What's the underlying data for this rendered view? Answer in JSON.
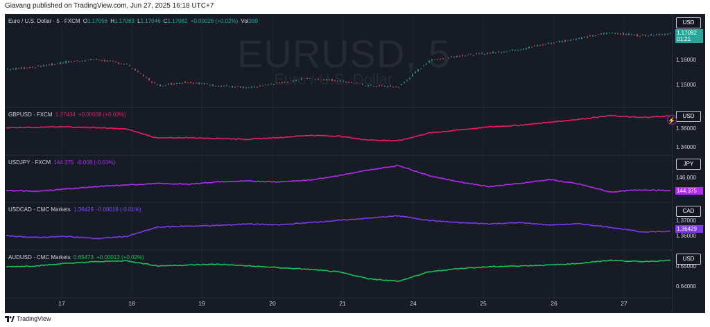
{
  "header": {
    "text": "Giavang published on TradingView.com, Jun 27, 2025 16:18 UTC+7"
  },
  "footer": {
    "brand": "TradingView"
  },
  "watermark": {
    "symbol": "EURUSD, 5",
    "name": "Euro / U.S. Dollar"
  },
  "colors": {
    "bg": "#171b26",
    "grid": "#2a2e39",
    "up": "#26a69a",
    "down": "#ef5350",
    "gbp": "#e91e63",
    "jpy": "#b22bf0",
    "cad": "#7c3aed",
    "aud": "#16c456"
  },
  "chart_data": [
    {
      "type": "candlestick",
      "legend": {
        "title": "Euro / U.S. Dollar · 5 · FXCM",
        "o_label": "O",
        "o": "1.17056",
        "h_label": "H",
        "h": "1.17083",
        "l_label": "L",
        "l": "1.17046",
        "c_label": "C",
        "c": "1.17082",
        "change": "+0.00026 (+0.02%)",
        "vol_label": "Vol",
        "vol": "399"
      },
      "currency": "USD",
      "last_price": "1.17082",
      "countdown": "01:21",
      "y_ticks": [
        "1.16000",
        "1.15000"
      ],
      "ylim": [
        1.1435,
        1.1765
      ],
      "x": [
        "start",
        "",
        "17",
        "",
        "18",
        "",
        "19",
        "",
        "20",
        "",
        "21",
        "",
        "gap",
        "",
        "24",
        "",
        "25",
        "",
        "26",
        "",
        "27",
        "",
        "end"
      ],
      "values": [
        1.1565,
        1.1575,
        1.1595,
        1.1605,
        1.1585,
        1.15,
        1.1515,
        1.15,
        1.149,
        1.151,
        1.153,
        1.152,
        1.15,
        1.1495,
        1.16,
        1.162,
        1.163,
        1.1645,
        1.167,
        1.169,
        1.1712,
        1.17,
        1.1708
      ]
    },
    {
      "type": "line",
      "legend": {
        "title": "GBPUSD · FXCM",
        "value": "1.37434",
        "change": "+0.00038 (+0.03%)"
      },
      "currency": "USD",
      "y_ticks": [
        "1.36000",
        "1.34000"
      ],
      "ylim": [
        1.3305,
        1.378
      ],
      "values": [
        1.359,
        1.3595,
        1.36,
        1.359,
        1.357,
        1.3455,
        1.346,
        1.345,
        1.344,
        1.346,
        1.349,
        1.348,
        1.343,
        1.342,
        1.352,
        1.356,
        1.36,
        1.362,
        1.366,
        1.37,
        1.3745,
        1.372,
        1.3743
      ]
    },
    {
      "type": "line",
      "legend": {
        "title": "USDJPY · FXCM",
        "value": "144.375",
        "change": "-0.008 (-0.01%)"
      },
      "currency": "JPY",
      "last_price": "144.375",
      "y_ticks": [
        "146.000"
      ],
      "ylim": [
        143.6,
        148.2
      ],
      "values": [
        144.4,
        144.3,
        144.6,
        144.9,
        145.1,
        145.3,
        145.2,
        145.5,
        145.6,
        145.5,
        145.7,
        146.3,
        147.0,
        147.6,
        146.3,
        145.5,
        144.9,
        145.3,
        145.8,
        145.2,
        144.2,
        144.5,
        144.375
      ]
    },
    {
      "type": "line",
      "legend": {
        "title": "USDCAD · CMC Markets",
        "value": "1.36429",
        "change": "-0.00019 (-0.01%)"
      },
      "currency": "CAD",
      "last_price": "1.36429",
      "y_ticks": [
        "1.37000",
        "1.36000"
      ],
      "ylim": [
        1.3528,
        1.385
      ],
      "values": [
        1.3605,
        1.359,
        1.36,
        1.358,
        1.36,
        1.368,
        1.369,
        1.3695,
        1.371,
        1.37,
        1.372,
        1.374,
        1.376,
        1.378,
        1.374,
        1.372,
        1.371,
        1.372,
        1.37,
        1.371,
        1.368,
        1.364,
        1.3643
      ]
    },
    {
      "type": "line",
      "legend": {
        "title": "AUDUSD · CMC Markets",
        "value": "0.65473",
        "change": "+0.00013 (+0.02%)"
      },
      "currency": "USD",
      "y_ticks": [
        "0.65000",
        "0.64000"
      ],
      "ylim": [
        0.636,
        0.6575
      ],
      "values": [
        0.651,
        0.6515,
        0.653,
        0.654,
        0.6545,
        0.6515,
        0.652,
        0.6525,
        0.6515,
        0.6505,
        0.6495,
        0.648,
        0.644,
        0.6425,
        0.648,
        0.65,
        0.651,
        0.6515,
        0.652,
        0.653,
        0.6548,
        0.654,
        0.6547
      ]
    }
  ],
  "x_axis": {
    "labels": [
      "17",
      "18",
      "19",
      "20",
      "21",
      "24",
      "25",
      "26",
      "27"
    ]
  }
}
